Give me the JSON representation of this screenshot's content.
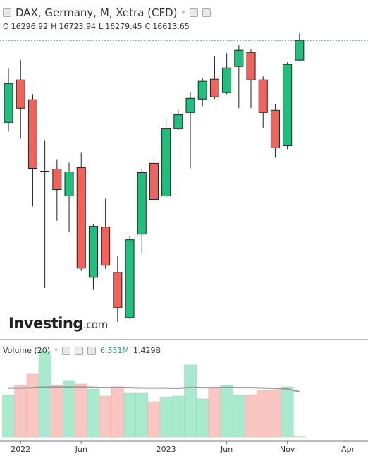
{
  "chart_data": {
    "type": "candlestick",
    "title": "DAX, Germany, M, Xetra (CFD)",
    "ohlc_legend": [
      {
        "label": "O",
        "value": 16296.92
      },
      {
        "label": "H",
        "value": 16723.94
      },
      {
        "label": "L",
        "value": 16279.45
      },
      {
        "label": "C",
        "value": 16613.65
      }
    ],
    "watermark": [
      "Investing",
      ".com"
    ],
    "open": [
      15302,
      15980,
      15664,
      14510,
      14555,
      14125,
      14578,
      12824,
      13628,
      12904,
      12180,
      13514,
      14646,
      14125,
      15200,
      15460,
      15675,
      15992,
      15777,
      16195,
      16421,
      15980,
      15494,
      14928,
      16296.92
    ],
    "high": [
      16161,
      16297,
      15754,
      15008,
      14713,
      14657,
      14815,
      13673,
      14080,
      13164,
      13481,
      14555,
      14759,
      15347,
      15505,
      15777,
      16014,
      16353,
      16410,
      16534,
      16467,
      16037,
      15596,
      16263,
      16723.94
    ],
    "low": [
      15155,
      15041,
      13956,
      12655,
      13729,
      13548,
      12926,
      12621,
      12960,
      12112,
      12157,
      13209,
      14023,
      14103,
      15177,
      14566,
      15562,
      15675,
      15754,
      15528,
      15528,
      15211,
      14736,
      14872,
      16279.45
    ],
    "close": [
      15924,
      15528,
      14566,
      14521,
      14227,
      14510,
      12972,
      13639,
      13017,
      12338,
      13424,
      14498,
      14069,
      15200,
      15426,
      15686,
      15958,
      15709,
      16172,
      16455,
      15980,
      15460,
      14894,
      16229,
      16613.65
    ],
    "up_color": "#1fc07c",
    "down_color": "#f0635a",
    "ylim": [
      11829,
      17258
    ],
    "xlim": [
      -0.7,
      29.65
    ],
    "xticks": [
      {
        "value": 1,
        "label": "2022"
      },
      {
        "value": 6,
        "label": "Jun"
      },
      {
        "value": 13,
        "label": "2023"
      },
      {
        "value": 18,
        "label": "Jun"
      },
      {
        "value": 23,
        "label": "Nov"
      },
      {
        "value": 28,
        "label": "Apr"
      }
    ],
    "last_price_line": true,
    "volume": {
      "title": "Volume (20)",
      "legend_values": [
        {
          "value": 6351000,
          "label": "6.351M",
          "color": "#1fa56b"
        },
        {
          "value": 1429000000,
          "label": "1.429B",
          "color": "#333333"
        }
      ],
      "values": [
        1317000000,
        1630000000,
        1987000000,
        2724000000,
        1630000000,
        1764000000,
        1675000000,
        1518000000,
        1295000000,
        1585000000,
        1384000000,
        1384000000,
        1117000000,
        1250000000,
        1295000000,
        2278000000,
        1206000000,
        1541000000,
        1630000000,
        1317000000,
        1317000000,
        1474000000,
        1496000000,
        1585000000,
        6351000
      ],
      "ma": [
        1550000000,
        1550000000,
        1560000000,
        1580000000,
        1580000000,
        1580000000,
        1580000000,
        1570000000,
        1560000000,
        1570000000,
        1560000000,
        1550000000,
        1550000000,
        1550000000,
        1540000000,
        1570000000,
        1560000000,
        1560000000,
        1570000000,
        1560000000,
        1560000000,
        1550000000,
        1540000000,
        1520000000,
        1429000000
      ],
      "up_color": "#a9e9cd",
      "down_color": "#f9c6c2",
      "ma_color": "#9a9a9a",
      "ylim": [
        0,
        2880000000
      ]
    }
  }
}
